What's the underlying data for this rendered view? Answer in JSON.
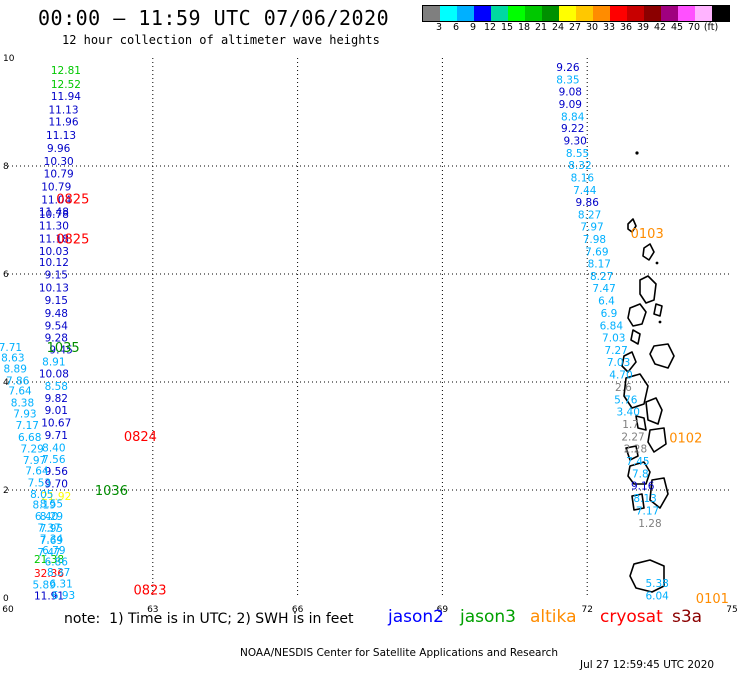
{
  "header": {
    "title": "00:00 — 11:59 UTC 07/06/2020",
    "subtitle": "12 hour collection of altimeter wave heights"
  },
  "scale": {
    "colors": [
      "#7f7f7f",
      "#00ffff",
      "#00b0ff",
      "#0000ff",
      "#00d8a0",
      "#00ff00",
      "#00c800",
      "#009000",
      "#ffff00",
      "#ffc800",
      "#ff8c00",
      "#ff0000",
      "#c80000",
      "#8b0000",
      "#a0007f",
      "#ff50ff",
      "#ffb4ff",
      "#000000"
    ],
    "ticks": [
      "3",
      "6",
      "9",
      "12",
      "15",
      "18",
      "21",
      "24",
      "27",
      "30",
      "33",
      "36",
      "39",
      "42",
      "45",
      "70",
      "(ft)"
    ]
  },
  "chart_data": {
    "type": "scatter",
    "title": "00:00 — 11:59 UTC 07/06/2020",
    "subtitle": "12 hour collection of altimeter wave heights",
    "xlabel": "",
    "ylabel": "",
    "xlim": [
      60,
      75
    ],
    "ylim": [
      0,
      10
    ],
    "x_ticks": [
      "60",
      "63",
      "66",
      "69",
      "72",
      "75"
    ],
    "y_ticks": [
      "0",
      "2",
      "4",
      "6",
      "8",
      "10"
    ],
    "grid": true,
    "units": "ft",
    "time_labels": [
      {
        "text": "0825",
        "x": 61.0,
        "y": 7.4,
        "color": "#ff0000"
      },
      {
        "text": "0825",
        "x": 61.0,
        "y": 6.66,
        "color": "#ff0000"
      },
      {
        "text": "1035",
        "x": 60.8,
        "y": 4.65,
        "color": "#008c00"
      },
      {
        "text": "0824",
        "x": 62.4,
        "y": 3.0,
        "color": "#ff0000"
      },
      {
        "text": "1036",
        "x": 61.8,
        "y": 2.0,
        "color": "#008c00"
      },
      {
        "text": "0823",
        "x": 62.6,
        "y": 0.16,
        "color": "#ff0000"
      },
      {
        "text": "0103",
        "x": 72.9,
        "y": 6.76,
        "color": "#ff8c00"
      },
      {
        "text": "0102",
        "x": 73.7,
        "y": 2.97,
        "color": "#ff8c00"
      },
      {
        "text": "0101",
        "x": 74.25,
        "y": 0.0,
        "color": "#ff8c00"
      }
    ],
    "points": [
      {
        "v": "12.81",
        "x": 61.2,
        "y": 9.78,
        "c": "#00c800"
      },
      {
        "v": "12.52",
        "x": 61.2,
        "y": 9.52,
        "c": "#00c800"
      },
      {
        "v": "11.94",
        "x": 61.2,
        "y": 9.3,
        "c": "#0000c8"
      },
      {
        "v": "11.13",
        "x": 61.15,
        "y": 9.05,
        "c": "#0000c8"
      },
      {
        "v": "11.96",
        "x": 61.15,
        "y": 8.82,
        "c": "#0000c8"
      },
      {
        "v": "11.13",
        "x": 61.1,
        "y": 8.57,
        "c": "#0000c8"
      },
      {
        "v": "9.96",
        "x": 61.05,
        "y": 8.33,
        "c": "#0000c8"
      },
      {
        "v": "10.30",
        "x": 61.05,
        "y": 8.09,
        "c": "#0000c8"
      },
      {
        "v": "10.79",
        "x": 61.05,
        "y": 7.86,
        "c": "#0000c8"
      },
      {
        "v": "10.79",
        "x": 61.0,
        "y": 7.62,
        "c": "#0000c8"
      },
      {
        "v": "11.04",
        "x": 61.0,
        "y": 7.38,
        "c": "#0000c8"
      },
      {
        "v": "11.48",
        "x": 60.95,
        "y": 7.16,
        "c": "#0000c8"
      },
      {
        "v": "10.78",
        "x": 60.95,
        "y": 7.11,
        "c": "#0000c8"
      },
      {
        "v": "11.30",
        "x": 60.95,
        "y": 6.9,
        "c": "#0000c8"
      },
      {
        "v": "11.18",
        "x": 60.95,
        "y": 6.66,
        "c": "#0000c8"
      },
      {
        "v": "10.03",
        "x": 60.95,
        "y": 6.43,
        "c": "#0000c8"
      },
      {
        "v": "10.12",
        "x": 60.95,
        "y": 6.22,
        "c": "#0000c8"
      },
      {
        "v": "9.15",
        "x": 61.0,
        "y": 5.99,
        "c": "#0000c8"
      },
      {
        "v": "10.13",
        "x": 60.95,
        "y": 5.75,
        "c": "#0000c8"
      },
      {
        "v": "9.15",
        "x": 61.0,
        "y": 5.52,
        "c": "#0000c8"
      },
      {
        "v": "9.48",
        "x": 61.0,
        "y": 5.28,
        "c": "#0000c8"
      },
      {
        "v": "9.54",
        "x": 61.0,
        "y": 5.05,
        "c": "#0000c8"
      },
      {
        "v": "9.28",
        "x": 61.0,
        "y": 4.82,
        "c": "#0000c8"
      },
      {
        "v": "9.45",
        "x": 61.1,
        "y": 4.6,
        "c": "#0000c8"
      },
      {
        "v": "8.91",
        "x": 60.95,
        "y": 4.38,
        "c": "#00b0ff"
      },
      {
        "v": "10.08",
        "x": 60.95,
        "y": 4.16,
        "c": "#0000c8"
      },
      {
        "v": "8.58",
        "x": 61.0,
        "y": 3.93,
        "c": "#00b0ff"
      },
      {
        "v": "9.82",
        "x": 61.0,
        "y": 3.7,
        "c": "#0000c8"
      },
      {
        "v": "9.01",
        "x": 61.0,
        "y": 3.48,
        "c": "#0000c8"
      },
      {
        "v": "10.67",
        "x": 61.0,
        "y": 3.25,
        "c": "#0000c8"
      },
      {
        "v": "9.71",
        "x": 61.0,
        "y": 3.02,
        "c": "#0000c8"
      },
      {
        "v": "8.40",
        "x": 60.95,
        "y": 2.79,
        "c": "#00b0ff"
      },
      {
        "v": "7.56",
        "x": 60.95,
        "y": 2.57,
        "c": "#00b0ff"
      },
      {
        "v": "9.56",
        "x": 61.0,
        "y": 2.35,
        "c": "#0000c8"
      },
      {
        "v": "9.70",
        "x": 61.0,
        "y": 2.12,
        "c": "#0000c8"
      },
      {
        "v": "21.92",
        "x": 61.0,
        "y": 1.89,
        "c": "#ffff00"
      },
      {
        "v": "8.55",
        "x": 60.9,
        "y": 1.75,
        "c": "#00b0ff"
      },
      {
        "v": "8.29",
        "x": 60.9,
        "y": 1.52,
        "c": "#00b0ff"
      },
      {
        "v": "7.95",
        "x": 60.9,
        "y": 1.3,
        "c": "#00b0ff"
      },
      {
        "v": "7.69",
        "x": 60.9,
        "y": 1.07,
        "c": "#00b0ff"
      },
      {
        "v": "7.47",
        "x": 60.85,
        "y": 0.85,
        "c": "#00b0ff"
      },
      {
        "v": "21.38",
        "x": 60.85,
        "y": 0.72,
        "c": "#00c800"
      },
      {
        "v": "32.36",
        "x": 60.85,
        "y": 0.46,
        "c": "#ff0000"
      },
      {
        "v": "5.89",
        "x": 60.75,
        "y": 0.25,
        "c": "#00b0ff"
      },
      {
        "v": "11.91",
        "x": 60.85,
        "y": 0.05,
        "c": "#0000c8"
      },
      {
        "v": "7.71",
        "x": 60.05,
        "y": 4.65,
        "c": "#00b0ff"
      },
      {
        "v": "8.63",
        "x": 60.1,
        "y": 4.45,
        "c": "#00b0ff"
      },
      {
        "v": "8.89",
        "x": 60.15,
        "y": 4.25,
        "c": "#00b0ff"
      },
      {
        "v": "7.86",
        "x": 60.2,
        "y": 4.03,
        "c": "#00b0ff"
      },
      {
        "v": "7.64",
        "x": 60.25,
        "y": 3.84,
        "c": "#00b0ff"
      },
      {
        "v": "8.38",
        "x": 60.3,
        "y": 3.62,
        "c": "#00b0ff"
      },
      {
        "v": "7.93",
        "x": 60.35,
        "y": 3.42,
        "c": "#00b0ff"
      },
      {
        "v": "7.17",
        "x": 60.4,
        "y": 3.2,
        "c": "#00b0ff"
      },
      {
        "v": "6.68",
        "x": 60.45,
        "y": 2.98,
        "c": "#00b0ff"
      },
      {
        "v": "7.29",
        "x": 60.5,
        "y": 2.77,
        "c": "#00b0ff"
      },
      {
        "v": "7.97",
        "x": 60.55,
        "y": 2.56,
        "c": "#00b0ff"
      },
      {
        "v": "7.64",
        "x": 60.6,
        "y": 2.36,
        "c": "#00b0ff"
      },
      {
        "v": "7.53",
        "x": 60.65,
        "y": 2.14,
        "c": "#00b0ff"
      },
      {
        "v": "8.05",
        "x": 60.7,
        "y": 1.93,
        "c": "#00b0ff"
      },
      {
        "v": "8.19",
        "x": 60.75,
        "y": 1.73,
        "c": "#00b0ff"
      },
      {
        "v": "6.40",
        "x": 60.8,
        "y": 1.52,
        "c": "#00b0ff"
      },
      {
        "v": "7.37",
        "x": 60.85,
        "y": 1.31,
        "c": "#00b0ff"
      },
      {
        "v": "7.34",
        "x": 60.9,
        "y": 1.1,
        "c": "#00b0ff"
      },
      {
        "v": "6.79",
        "x": 60.95,
        "y": 0.89,
        "c": "#00b0ff"
      },
      {
        "v": "6.86",
        "x": 61.0,
        "y": 0.68,
        "c": "#00b0ff"
      },
      {
        "v": "8.37",
        "x": 61.05,
        "y": 0.48,
        "c": "#00b0ff"
      },
      {
        "v": "6.31",
        "x": 61.1,
        "y": 0.27,
        "c": "#00b0ff"
      },
      {
        "v": "6.93",
        "x": 61.15,
        "y": 0.06,
        "c": "#00b0ff"
      },
      {
        "v": "9.26",
        "x": 71.6,
        "y": 9.83,
        "c": "#0000c8"
      },
      {
        "v": "8.35",
        "x": 71.6,
        "y": 9.6,
        "c": "#00b0ff"
      },
      {
        "v": "9.08",
        "x": 71.65,
        "y": 9.38,
        "c": "#0000c8"
      },
      {
        "v": "9.09",
        "x": 71.65,
        "y": 9.15,
        "c": "#0000c8"
      },
      {
        "v": "8.84",
        "x": 71.7,
        "y": 8.92,
        "c": "#00b0ff"
      },
      {
        "v": "9.22",
        "x": 71.7,
        "y": 8.7,
        "c": "#0000c8"
      },
      {
        "v": "9.30",
        "x": 71.75,
        "y": 8.47,
        "c": "#0000c8"
      },
      {
        "v": "8.55",
        "x": 71.8,
        "y": 8.24,
        "c": "#00b0ff"
      },
      {
        "v": "8.32",
        "x": 71.85,
        "y": 8.02,
        "c": "#00b0ff"
      },
      {
        "v": "8.16",
        "x": 71.9,
        "y": 7.79,
        "c": "#00b0ff"
      },
      {
        "v": "7.44",
        "x": 71.95,
        "y": 7.56,
        "c": "#00b0ff"
      },
      {
        "v": "9.86",
        "x": 72.0,
        "y": 7.33,
        "c": "#0000c8"
      },
      {
        "v": "8.27",
        "x": 72.05,
        "y": 7.1,
        "c": "#00b0ff"
      },
      {
        "v": "7.97",
        "x": 72.1,
        "y": 6.88,
        "c": "#00b0ff"
      },
      {
        "v": "7.98",
        "x": 72.15,
        "y": 6.65,
        "c": "#00b0ff"
      },
      {
        "v": "7.69",
        "x": 72.2,
        "y": 6.42,
        "c": "#00b0ff"
      },
      {
        "v": "8.17",
        "x": 72.25,
        "y": 6.19,
        "c": "#00b0ff"
      },
      {
        "v": "8.27",
        "x": 72.3,
        "y": 5.96,
        "c": "#00b0ff"
      },
      {
        "v": "7.47",
        "x": 72.35,
        "y": 5.74,
        "c": "#00b0ff"
      },
      {
        "v": "6.4",
        "x": 72.4,
        "y": 5.51,
        "c": "#00b0ff"
      },
      {
        "v": "6.9",
        "x": 72.45,
        "y": 5.28,
        "c": "#00b0ff"
      },
      {
        "v": "6.84",
        "x": 72.5,
        "y": 5.05,
        "c": "#00b0ff"
      },
      {
        "v": "7.03",
        "x": 72.55,
        "y": 4.82,
        "c": "#00b0ff"
      },
      {
        "v": "7.27",
        "x": 72.6,
        "y": 4.59,
        "c": "#00b0ff"
      },
      {
        "v": "7.03",
        "x": 72.65,
        "y": 4.37,
        "c": "#00b0ff"
      },
      {
        "v": "4.70",
        "x": 72.7,
        "y": 4.14,
        "c": "#00b0ff"
      },
      {
        "v": "2.6",
        "x": 72.75,
        "y": 3.91,
        "c": "#7f7f7f"
      },
      {
        "v": "5.76",
        "x": 72.8,
        "y": 3.68,
        "c": "#00b0ff"
      },
      {
        "v": "3.40",
        "x": 72.85,
        "y": 3.45,
        "c": "#00b0ff"
      },
      {
        "v": "1.7",
        "x": 72.9,
        "y": 3.22,
        "c": "#7f7f7f"
      },
      {
        "v": "2.27",
        "x": 72.95,
        "y": 2.99,
        "c": "#7f7f7f"
      },
      {
        "v": "2.28",
        "x": 73.0,
        "y": 2.77,
        "c": "#7f7f7f"
      },
      {
        "v": "7.45",
        "x": 73.05,
        "y": 2.54,
        "c": "#00b0ff"
      },
      {
        "v": "7.8",
        "x": 73.1,
        "y": 2.31,
        "c": "#00b0ff"
      },
      {
        "v": "9.16",
        "x": 73.15,
        "y": 2.08,
        "c": "#0000c8"
      },
      {
        "v": "8.13",
        "x": 73.2,
        "y": 1.85,
        "c": "#00b0ff"
      },
      {
        "v": "7.17",
        "x": 73.25,
        "y": 1.62,
        "c": "#00b0ff"
      },
      {
        "v": "1.28",
        "x": 73.3,
        "y": 1.39,
        "c": "#7f7f7f"
      },
      {
        "v": "5.38",
        "x": 73.45,
        "y": 0.28,
        "c": "#00b0ff"
      },
      {
        "v": "6.04",
        "x": 73.45,
        "y": 0.05,
        "c": "#00b0ff"
      }
    ]
  },
  "footer": {
    "note": "note:  1) Time is in UTC; 2) SWH is in feet",
    "satellites": [
      {
        "name": "jason2",
        "color": "#0000ff"
      },
      {
        "name": "jason3",
        "color": "#00a000"
      },
      {
        "name": "altika",
        "color": "#ff8c00"
      },
      {
        "name": "cryosat",
        "color": "#ff0000"
      },
      {
        "name": "s3a",
        "color": "#8b0000"
      }
    ],
    "credit": "NOAA/NESDIS Center for Satellite Applications and Research",
    "timestamp": "Jul 27 12:59:45 UTC 2020"
  }
}
